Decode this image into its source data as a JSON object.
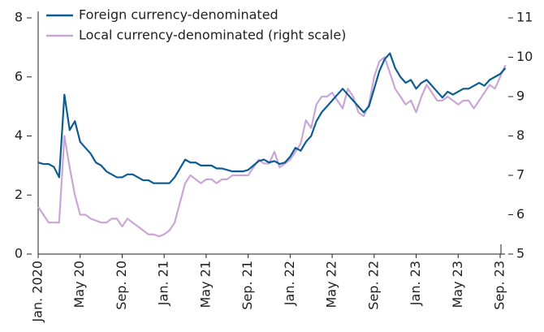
{
  "chart_data": {
    "type": "line",
    "categories": [
      "Jan. 2020",
      null,
      null,
      null,
      null,
      null,
      null,
      null,
      "May 20",
      null,
      null,
      null,
      null,
      null,
      null,
      null,
      "Sep. 20",
      null,
      null,
      null,
      null,
      null,
      null,
      null,
      "Jan. 21",
      null,
      null,
      null,
      null,
      null,
      null,
      null,
      "May 21",
      null,
      null,
      null,
      null,
      null,
      null,
      null,
      "Sep. 21",
      null,
      null,
      null,
      null,
      null,
      null,
      null,
      "Jan. 22",
      null,
      null,
      null,
      null,
      null,
      null,
      null,
      "May 22",
      null,
      null,
      null,
      null,
      null,
      null,
      null,
      "Sep. 22",
      null,
      null,
      null,
      null,
      null,
      null,
      null,
      "Jan. 23",
      null,
      null,
      null,
      null,
      null,
      null,
      null,
      "May 23",
      null,
      null,
      null,
      null,
      null,
      null,
      null,
      "Sep. 23",
      null
    ],
    "series": [
      {
        "name": "Foreign currency-denominated",
        "color": "#0b5c93",
        "values": [
          3.1,
          3.05,
          3.05,
          2.95,
          2.6,
          5.4,
          4.2,
          4.5,
          3.8,
          3.6,
          3.4,
          3.1,
          3.0,
          2.8,
          2.7,
          2.6,
          2.6,
          2.7,
          2.7,
          2.6,
          2.5,
          2.5,
          2.4,
          2.4,
          2.4,
          2.4,
          2.6,
          2.9,
          3.2,
          3.1,
          3.1,
          3.0,
          3.0,
          3.0,
          2.9,
          2.9,
          2.85,
          2.8,
          2.8,
          2.8,
          2.85,
          3.0,
          3.15,
          3.2,
          3.1,
          3.15,
          3.05,
          3.1,
          3.3,
          3.6,
          3.5,
          3.8,
          4.0,
          4.5,
          4.8,
          5.0,
          5.2,
          5.4,
          5.6,
          5.4,
          5.2,
          5.0,
          4.8,
          5.0,
          5.6,
          6.2,
          6.6,
          6.8,
          6.3,
          6.0,
          5.8,
          5.9,
          5.6,
          5.8,
          5.9,
          5.7,
          5.5,
          5.3,
          5.5,
          5.4,
          5.5,
          5.6,
          5.6,
          5.7,
          5.8,
          5.7,
          5.9,
          6.0,
          6.1,
          6.3
        ]
      },
      {
        "name": "Local currency-denominated (right scale)",
        "color": "#c9a6d6",
        "axis": "y2",
        "values": [
          6.2,
          6.0,
          5.8,
          5.8,
          5.8,
          8.0,
          7.2,
          6.5,
          6.0,
          6.0,
          5.9,
          5.85,
          5.8,
          5.8,
          5.9,
          5.9,
          5.7,
          5.9,
          5.8,
          5.7,
          5.6,
          5.5,
          5.5,
          5.45,
          5.5,
          5.6,
          5.8,
          6.3,
          6.8,
          7.0,
          6.9,
          6.8,
          6.9,
          6.9,
          6.8,
          6.9,
          6.9,
          7.0,
          7.0,
          7.0,
          7.0,
          7.2,
          7.4,
          7.3,
          7.3,
          7.6,
          7.2,
          7.3,
          7.4,
          7.6,
          7.8,
          8.4,
          8.2,
          8.8,
          9.0,
          9.0,
          9.1,
          8.9,
          8.7,
          9.2,
          9.0,
          8.6,
          8.5,
          8.8,
          9.5,
          9.9,
          10.0,
          9.6,
          9.2,
          9.0,
          8.8,
          8.9,
          8.6,
          9.0,
          9.3,
          9.1,
          8.9,
          8.9,
          9.0,
          8.9,
          8.8,
          8.9,
          8.9,
          8.7,
          8.9,
          9.1,
          9.3,
          9.2,
          9.5,
          9.8
        ]
      }
    ],
    "ylim": [
      0,
      8
    ],
    "yticks": [
      0,
      2,
      4,
      6,
      8
    ],
    "y2lim": [
      5,
      11
    ],
    "y2ticks": [
      5,
      6,
      7,
      8,
      9,
      10,
      11
    ],
    "legend": "upper left"
  }
}
